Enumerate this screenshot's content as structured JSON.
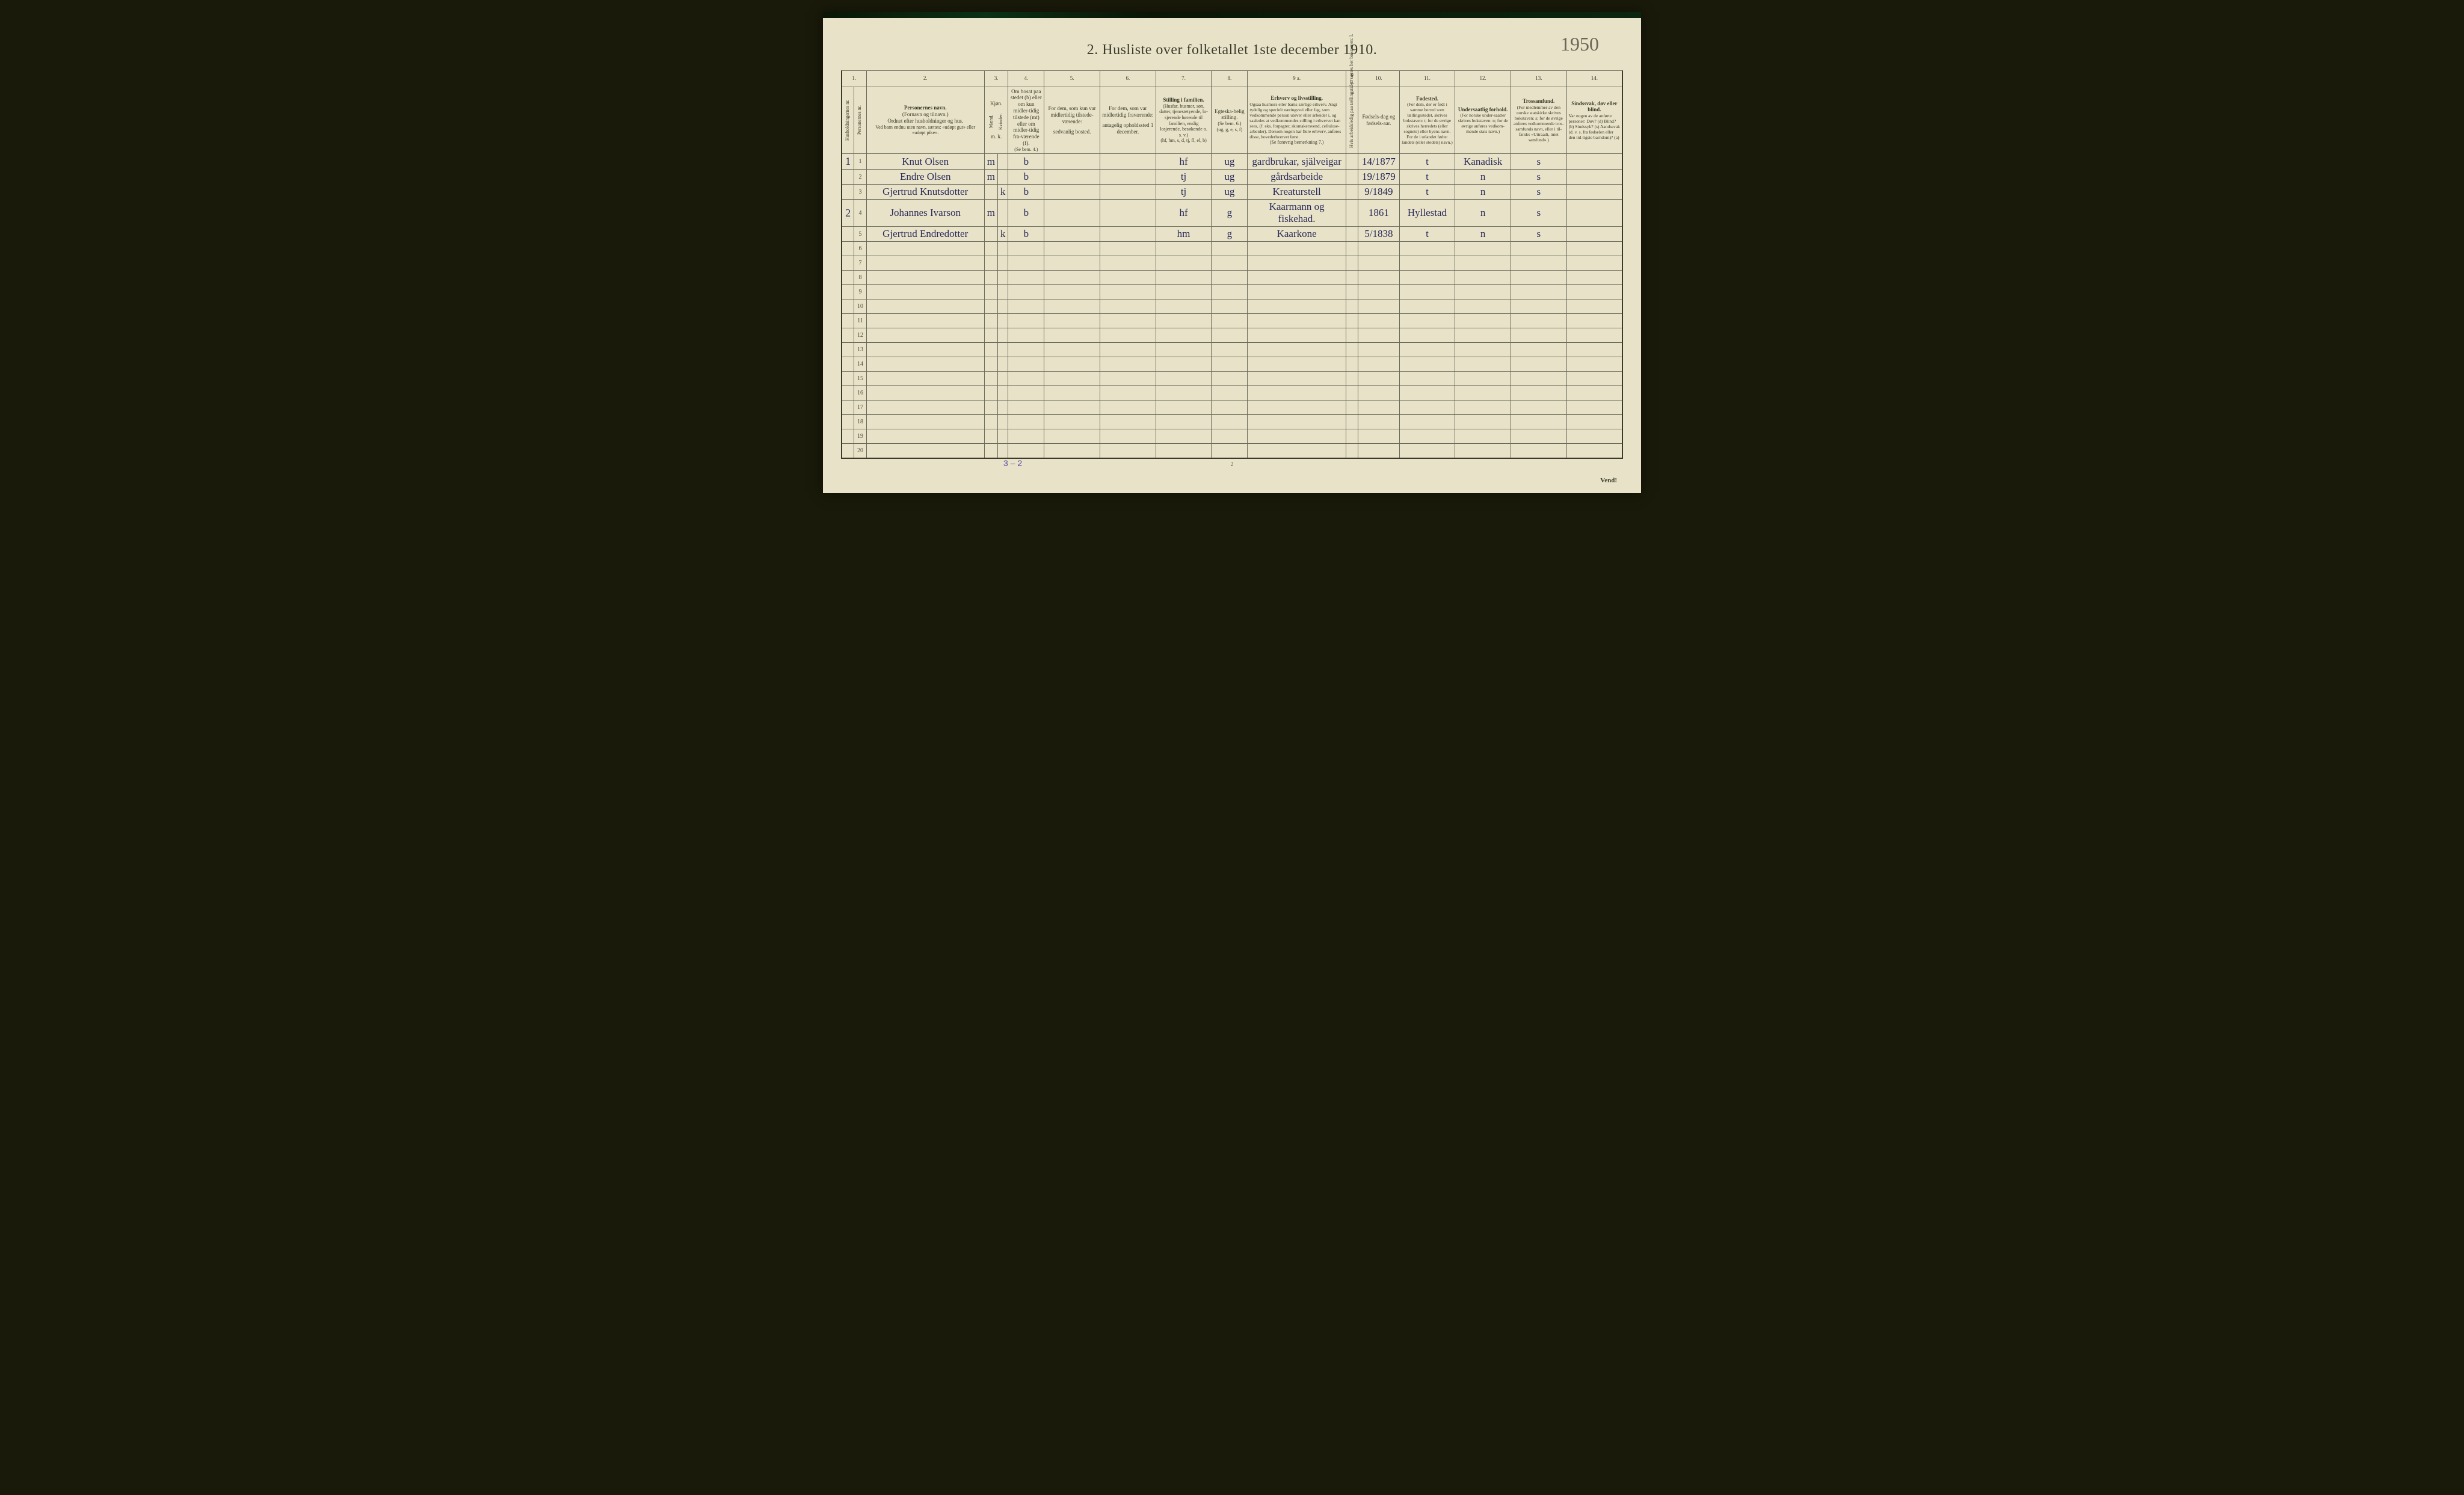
{
  "handwritten_top_right": "1950",
  "title": "2.  Husliste over folketallet 1ste december 1910.",
  "column_numbers": [
    "1.",
    "",
    "2.",
    "3.",
    "4.",
    "5.",
    "6.",
    "7.",
    "8.",
    "9 a.",
    "9 b.",
    "10.",
    "11.",
    "12.",
    "13.",
    "14."
  ],
  "headers": {
    "col1a": "Husholdningernes nr.",
    "col1b": "Personernes nr.",
    "col2_title": "Personernes navn.",
    "col2_sub1": "(Fornavn og tilnavn.)",
    "col2_sub2": "Ordnet efter husholdninger og hus.",
    "col2_sub3": "Ved barn endnu uten navn, sættes: «udøpt gut» eller «udøpt pike».",
    "col3_title": "Kjøn.",
    "col3_m": "Mænd.",
    "col3_k": "Kvinder.",
    "col3_mk": "m.  k.",
    "col4_title": "Om bosat paa stedet (b) eller om kun midler-tidig tilstede (mt) eller om midler-tidig fra-værende (f).",
    "col4_sub": "(Se bem. 4.)",
    "col5_title": "For dem, som kun var midlertidig tilstede-værende:",
    "col5_sub": "sedvanlig bosted.",
    "col6_title": "For dem, som var midlertidig fraværende:",
    "col6_sub": "antagelig opholdssted 1 december.",
    "col7_title": "Stilling i familien.",
    "col7_sub1": "(Husfar, husmor, søn, datter, tjenestetyende, lo-sjerende hørende til familien, enslig losjerende, besøkende o. s. v.)",
    "col7_sub2": "(hf, hm, s, d, tj, fl, el, b)",
    "col8_title": "Egteska-belig stilling.",
    "col8_sub1": "(Se bem. 6.)",
    "col8_sub2": "(ug, g, e, s, f)",
    "col9a_title": "Erhverv og livsstilling.",
    "col9a_sub1": "Ogsaa husmors eller barns særlige erhverv. Angi tydelig og specielt næringsvei eller fag, som vedkommende person utøver eller arbeider i, og saaledes at vedkommendes stilling i erhvervet kan sees, (f. eks. forpagter, skomakersvend, cellulose-arbeider). Dersom nogen har flere erhverv, anføres disse, hovederhvervet først.",
    "col9a_sub2": "(Se forøvrig bemerkning 7.)",
    "col9b": "Hvis arbeidsledig paa tællingstiden sættes her bokstaven: l.",
    "col10_title": "Fødsels-dag og fødsels-aar.",
    "col11_title": "Fødested.",
    "col11_sub": "(For dem, der er født i samme herred som tællingsstedet, skrives bokstaven: t; for de øvrige skrives herredets (eller sognets) eller byens navn. For de i utlandet fødte: landets (eller stedets) navn.)",
    "col12_title": "Undersaatlig forhold.",
    "col12_sub": "(For norske under-saatter skrives bokstaven: n; for de øvrige anføres vedkom-mende stats navn.)",
    "col13_title": "Trossamfund.",
    "col13_sub": "(For medlemmer av den norske statskirke skrives bokstaven: s; for de øvrige anføres vedkommende tros-samfunds navn, eller i til-fælde: «Uttraadt, intet samfund».)",
    "col14_title": "Sindssvak, døv eller blind.",
    "col14_sub": "Var nogen av de anførte personer: Døv? (d) Blind? (b) Sindssyk? (s) Aandssvak (d. v. s. fra fødselen eller den tid-ligste barndom)? (a)"
  },
  "rows": [
    {
      "hush": "1",
      "num": "1",
      "name": "Knut Olsen",
      "m": "m",
      "k": "",
      "b": "b",
      "c7": "hf",
      "c8": "ug",
      "c9": "gardbrukar, själveigar",
      "c10": "14/1877",
      "c11": "t",
      "c12": "Kanadisk",
      "c13": "s"
    },
    {
      "hush": "",
      "num": "2",
      "name": "Endre Olsen",
      "m": "m",
      "k": "",
      "b": "b",
      "c7": "tj",
      "c8": "ug",
      "c9": "gårdsarbeide",
      "c10": "19/1879",
      "c11": "t",
      "c12": "n",
      "c13": "s"
    },
    {
      "hush": "",
      "num": "3",
      "name": "Gjertrud Knutsdotter",
      "m": "",
      "k": "k",
      "b": "b",
      "c7": "tj",
      "c8": "ug",
      "c9": "Kreaturstell",
      "c10": "9/1849",
      "c11": "t",
      "c12": "n",
      "c13": "s"
    },
    {
      "hush": "2",
      "num": "4",
      "name": "Johannes Ivarson",
      "m": "m",
      "k": "",
      "b": "b",
      "c7": "hf",
      "c8": "g",
      "c9": "Kaarmann og fiskehad.",
      "c10": "1861",
      "c11": "Hyllestad",
      "c12": "n",
      "c13": "s"
    },
    {
      "hush": "",
      "num": "5",
      "name": "Gjertrud Endredotter",
      "m": "",
      "k": "k",
      "b": "b",
      "c7": "hm",
      "c8": "g",
      "c9": "Kaarkone",
      "c10": "5/1838",
      "c11": "t",
      "c12": "n",
      "c13": "s"
    },
    {
      "hush": "",
      "num": "6",
      "name": "",
      "m": "",
      "k": "",
      "b": "",
      "c7": "",
      "c8": "",
      "c9": "",
      "c10": "",
      "c11": "",
      "c12": "",
      "c13": ""
    },
    {
      "hush": "",
      "num": "7",
      "name": "",
      "m": "",
      "k": "",
      "b": "",
      "c7": "",
      "c8": "",
      "c9": "",
      "c10": "",
      "c11": "",
      "c12": "",
      "c13": ""
    },
    {
      "hush": "",
      "num": "8",
      "name": "",
      "m": "",
      "k": "",
      "b": "",
      "c7": "",
      "c8": "",
      "c9": "",
      "c10": "",
      "c11": "",
      "c12": "",
      "c13": ""
    },
    {
      "hush": "",
      "num": "9",
      "name": "",
      "m": "",
      "k": "",
      "b": "",
      "c7": "",
      "c8": "",
      "c9": "",
      "c10": "",
      "c11": "",
      "c12": "",
      "c13": ""
    },
    {
      "hush": "",
      "num": "10",
      "name": "",
      "m": "",
      "k": "",
      "b": "",
      "c7": "",
      "c8": "",
      "c9": "",
      "c10": "",
      "c11": "",
      "c12": "",
      "c13": ""
    },
    {
      "hush": "",
      "num": "11",
      "name": "",
      "m": "",
      "k": "",
      "b": "",
      "c7": "",
      "c8": "",
      "c9": "",
      "c10": "",
      "c11": "",
      "c12": "",
      "c13": ""
    },
    {
      "hush": "",
      "num": "12",
      "name": "",
      "m": "",
      "k": "",
      "b": "",
      "c7": "",
      "c8": "",
      "c9": "",
      "c10": "",
      "c11": "",
      "c12": "",
      "c13": ""
    },
    {
      "hush": "",
      "num": "13",
      "name": "",
      "m": "",
      "k": "",
      "b": "",
      "c7": "",
      "c8": "",
      "c9": "",
      "c10": "",
      "c11": "",
      "c12": "",
      "c13": ""
    },
    {
      "hush": "",
      "num": "14",
      "name": "",
      "m": "",
      "k": "",
      "b": "",
      "c7": "",
      "c8": "",
      "c9": "",
      "c10": "",
      "c11": "",
      "c12": "",
      "c13": ""
    },
    {
      "hush": "",
      "num": "15",
      "name": "",
      "m": "",
      "k": "",
      "b": "",
      "c7": "",
      "c8": "",
      "c9": "",
      "c10": "",
      "c11": "",
      "c12": "",
      "c13": ""
    },
    {
      "hush": "",
      "num": "16",
      "name": "",
      "m": "",
      "k": "",
      "b": "",
      "c7": "",
      "c8": "",
      "c9": "",
      "c10": "",
      "c11": "",
      "c12": "",
      "c13": ""
    },
    {
      "hush": "",
      "num": "17",
      "name": "",
      "m": "",
      "k": "",
      "b": "",
      "c7": "",
      "c8": "",
      "c9": "",
      "c10": "",
      "c11": "",
      "c12": "",
      "c13": ""
    },
    {
      "hush": "",
      "num": "18",
      "name": "",
      "m": "",
      "k": "",
      "b": "",
      "c7": "",
      "c8": "",
      "c9": "",
      "c10": "",
      "c11": "",
      "c12": "",
      "c13": ""
    },
    {
      "hush": "",
      "num": "19",
      "name": "",
      "m": "",
      "k": "",
      "b": "",
      "c7": "",
      "c8": "",
      "c9": "",
      "c10": "",
      "c11": "",
      "c12": "",
      "c13": ""
    },
    {
      "hush": "",
      "num": "20",
      "name": "",
      "m": "",
      "k": "",
      "b": "",
      "c7": "",
      "c8": "",
      "c9": "",
      "c10": "",
      "c11": "",
      "c12": "",
      "c13": ""
    }
  ],
  "bottom_tally": "3 – 2",
  "footer_page": "2",
  "vend": "Vend!",
  "colors": {
    "paper": "#e8e3c8",
    "ink": "#3a3a2a",
    "handwriting": "#2a2a5a",
    "border": "#6a6a5a"
  }
}
